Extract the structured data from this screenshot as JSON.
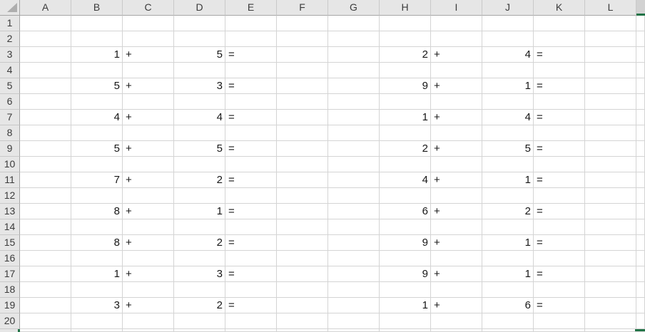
{
  "grid": {
    "column_headers": [
      "A",
      "B",
      "C",
      "D",
      "E",
      "F",
      "G",
      "H",
      "I",
      "J",
      "K",
      "L"
    ],
    "row_headers": [
      "1",
      "2",
      "3",
      "4",
      "5",
      "6",
      "7",
      "8",
      "9",
      "10",
      "11",
      "12",
      "13",
      "14",
      "15",
      "16",
      "17",
      "18",
      "19",
      "20"
    ],
    "operators": {
      "plus": "+",
      "equals": "="
    },
    "problem_columns": {
      "left": [
        "B",
        "C",
        "D",
        "E"
      ],
      "right": [
        "H",
        "I",
        "J",
        "K"
      ]
    }
  },
  "problems": [
    {
      "row": 3,
      "left_a": "1",
      "left_b": "5",
      "right_a": "2",
      "right_b": "4"
    },
    {
      "row": 5,
      "left_a": "5",
      "left_b": "3",
      "right_a": "9",
      "right_b": "1"
    },
    {
      "row": 7,
      "left_a": "4",
      "left_b": "4",
      "right_a": "1",
      "right_b": "4"
    },
    {
      "row": 9,
      "left_a": "5",
      "left_b": "5",
      "right_a": "2",
      "right_b": "5"
    },
    {
      "row": 11,
      "left_a": "7",
      "left_b": "2",
      "right_a": "4",
      "right_b": "1"
    },
    {
      "row": 13,
      "left_a": "8",
      "left_b": "1",
      "right_a": "6",
      "right_b": "2"
    },
    {
      "row": 15,
      "left_a": "8",
      "left_b": "2",
      "right_a": "9",
      "right_b": "1"
    },
    {
      "row": 17,
      "left_a": "1",
      "left_b": "3",
      "right_a": "9",
      "right_b": "1"
    },
    {
      "row": 19,
      "left_a": "3",
      "left_b": "2",
      "right_a": "1",
      "right_b": "6"
    }
  ],
  "selection": {
    "partial_column_header_visible": true,
    "partial_row_header_visible": true,
    "cell_border_fragment_visible": true
  },
  "colors": {
    "accent": "#217346",
    "header_bg": "#E6E6E6",
    "header_selected_bg": "#D2D2D2",
    "header_edge": "#A6A6A6",
    "header_separator": "#C9C9C9",
    "gridline": "#D4D4D4",
    "header_text": "#3B3B3B",
    "cell_text": "#171717",
    "triangle": "#AEAEAE"
  }
}
